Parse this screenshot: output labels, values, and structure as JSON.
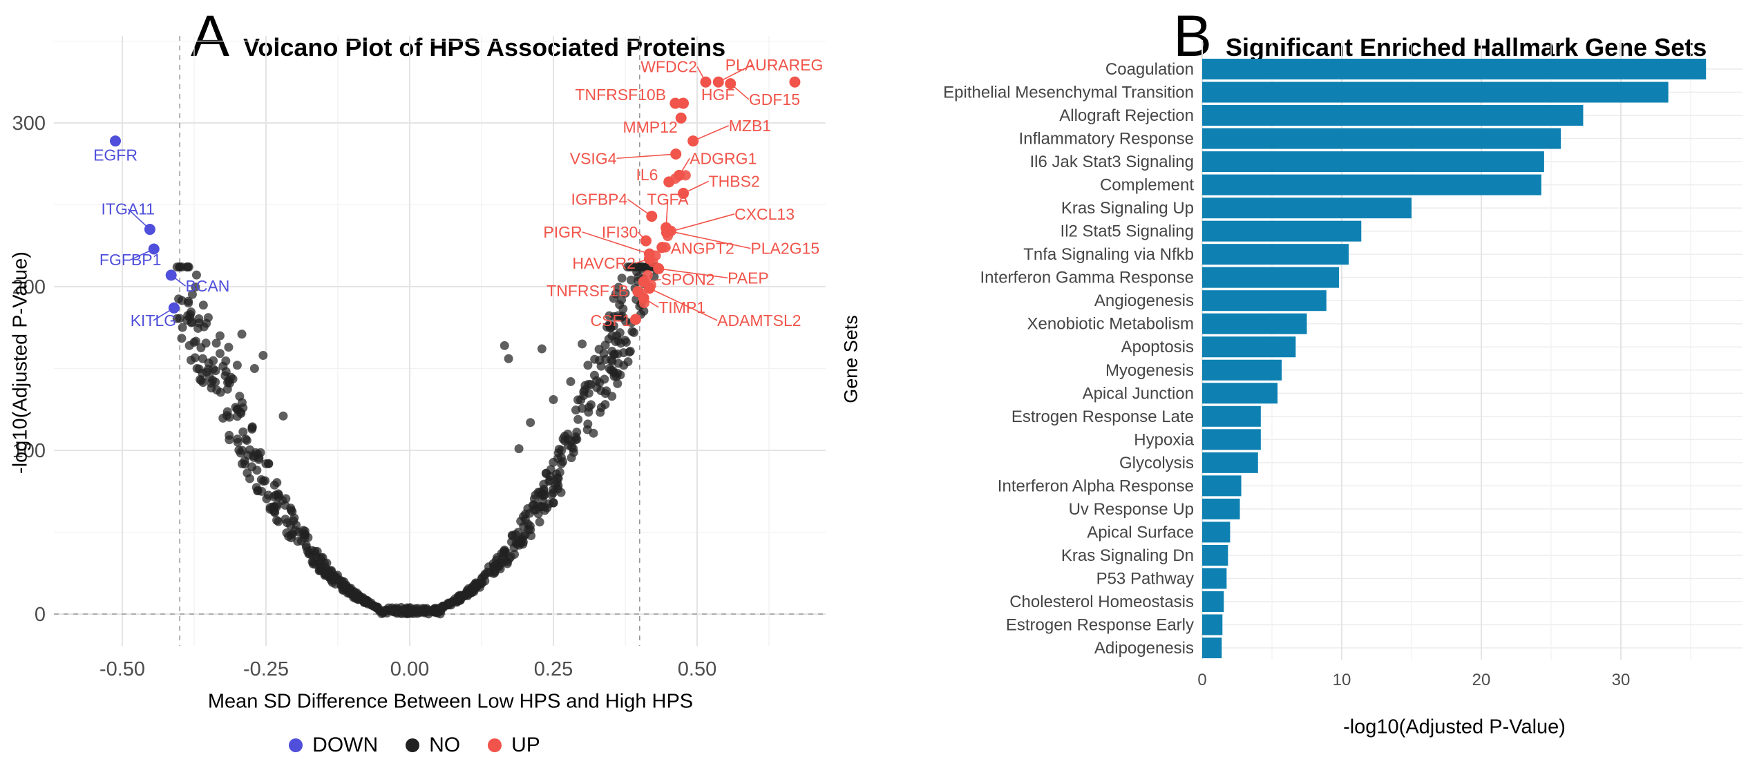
{
  "figure": {
    "background": "#ffffff"
  },
  "chart_data": [
    {
      "type": "scatter",
      "subtype": "volcano",
      "tag": "A",
      "title": "Volcano Plot of HPS Associated Proteins",
      "xlabel": "Mean SD Difference Between Low HPS and High HPS",
      "ylabel": "-log10(Adjusted P-Value)",
      "xlim": [
        -0.62,
        0.72
      ],
      "ylim": [
        -20,
        353
      ],
      "x_ticks": {
        "values": [
          -0.5,
          -0.25,
          0,
          0.25,
          0.5
        ],
        "labels": [
          "-0.50",
          "-0.25",
          "0.00",
          "0.25",
          "0.50"
        ]
      },
      "y_ticks": {
        "values": [
          0,
          100,
          200,
          300
        ],
        "labels": [
          "0",
          "100",
          "200",
          "300"
        ]
      },
      "threshold_lines": {
        "vertical_x": [
          -0.4,
          0.4
        ],
        "horizontal_y": 0
      },
      "colors": {
        "up": "#f1544a",
        "down": "#4f4fdb",
        "no": "#212121",
        "grid_major": "#e4e4e4",
        "grid_minor": "#f2f2f2",
        "dashed": "#9a9a9a",
        "tick_text": "#4d4d4d"
      },
      "legend": [
        {
          "label": "DOWN",
          "key": "down"
        },
        {
          "label": "NO",
          "key": "no"
        },
        {
          "label": "UP",
          "key": "up"
        }
      ],
      "up_genes": [
        {
          "g": "WFDC2",
          "x": 0.515,
          "y": 325,
          "lx": 0.5,
          "ly": 331,
          "anchor": "end",
          "leader": true
        },
        {
          "g": "PLAUR",
          "x": 0.537,
          "y": 325,
          "lx": 0.595,
          "ly": 332,
          "anchor": "middle",
          "leader": true
        },
        {
          "g": "AREG",
          "x": 0.67,
          "y": 325,
          "lx": 0.68,
          "ly": 332,
          "anchor": "middle",
          "leader": false
        },
        {
          "g": "GDF15",
          "x": 0.558,
          "y": 324,
          "lx": 0.59,
          "ly": 311,
          "anchor": "start",
          "leader": true
        },
        {
          "g": "TNFRSF10B",
          "x": 0.462,
          "y": 312,
          "lx": 0.446,
          "ly": 314,
          "anchor": "end",
          "leader": false
        },
        {
          "g": "HGF",
          "x": 0.476,
          "y": 312,
          "lx": 0.507,
          "ly": 314,
          "anchor": "start",
          "leader": false
        },
        {
          "g": "MMP12",
          "x": 0.472,
          "y": 303,
          "lx": 0.466,
          "ly": 294,
          "anchor": "end",
          "leader": false
        },
        {
          "g": "MZB1",
          "x": 0.493,
          "y": 289,
          "lx": 0.555,
          "ly": 295,
          "anchor": "start",
          "leader": true
        },
        {
          "g": "VSIG4",
          "x": 0.463,
          "y": 281,
          "lx": 0.36,
          "ly": 275,
          "anchor": "end",
          "leader": true
        },
        {
          "g": "ADGRG1",
          "x": 0.469,
          "y": 268,
          "lx": 0.487,
          "ly": 275,
          "anchor": "start",
          "leader": true
        },
        {
          "g": "IL6",
          "x": 0.451,
          "y": 264,
          "lx": 0.432,
          "ly": 265,
          "anchor": "end",
          "leader": false
        },
        {
          "g": "THBS2",
          "x": 0.476,
          "y": 257,
          "lx": 0.52,
          "ly": 261,
          "anchor": "start",
          "leader": true
        },
        {
          "g": "IGFBP4",
          "x": 0.421,
          "y": 243,
          "lx": 0.379,
          "ly": 250,
          "anchor": "end",
          "leader": true
        },
        {
          "g": "TGFA",
          "x": 0.446,
          "y": 236,
          "lx": 0.449,
          "ly": 250,
          "anchor": "middle",
          "leader": true
        },
        {
          "g": "CXCL13",
          "x": 0.447,
          "y": 233,
          "lx": 0.565,
          "ly": 241,
          "anchor": "start",
          "leader": true
        },
        {
          "g": "PLA2G15",
          "x": 0.451,
          "y": 234,
          "lx": 0.593,
          "ly": 220,
          "anchor": "start",
          "leader": true
        },
        {
          "g": "IFI30",
          "x": 0.411,
          "y": 228,
          "lx": 0.397,
          "ly": 230,
          "anchor": "end",
          "leader": true
        },
        {
          "g": "PIGR",
          "x": 0.417,
          "y": 220,
          "lx": 0.3,
          "ly": 230,
          "anchor": "end",
          "leader": true
        },
        {
          "g": "ANGPT2",
          "x": 0.439,
          "y": 224,
          "lx": 0.454,
          "ly": 220,
          "anchor": "start",
          "leader": true
        },
        {
          "g": "HAVCR2",
          "x": 0.417,
          "y": 217,
          "lx": 0.393,
          "ly": 211,
          "anchor": "end",
          "leader": true
        },
        {
          "g": "PAEP",
          "x": 0.433,
          "y": 211,
          "lx": 0.553,
          "ly": 202,
          "anchor": "start",
          "leader": true
        },
        {
          "g": "SPON2",
          "x": 0.407,
          "y": 203,
          "lx": 0.437,
          "ly": 201,
          "anchor": "start",
          "leader": true
        },
        {
          "g": "TNFRSF1B",
          "x": 0.397,
          "y": 197,
          "lx": 0.381,
          "ly": 194,
          "anchor": "end",
          "leader": false
        },
        {
          "g": "TIMP1",
          "x": 0.407,
          "y": 193,
          "lx": 0.433,
          "ly": 184,
          "anchor": "start",
          "leader": true
        },
        {
          "g": "ADAMTSL2",
          "x": 0.417,
          "y": 199,
          "lx": 0.535,
          "ly": 176,
          "anchor": "start",
          "leader": true
        },
        {
          "g": "CSF1",
          "x": 0.393,
          "y": 180,
          "lx": 0.385,
          "ly": 176,
          "anchor": "end",
          "leader": false
        }
      ],
      "down_genes": [
        {
          "g": "EGFR",
          "x": -0.512,
          "y": 289,
          "lx": -0.512,
          "ly": 277,
          "anchor": "middle",
          "leader": false
        },
        {
          "g": "ITGA11",
          "x": -0.452,
          "y": 235,
          "lx": -0.49,
          "ly": 244,
          "anchor": "middle",
          "leader": true
        },
        {
          "g": "FGFBP1",
          "x": -0.445,
          "y": 223,
          "lx": -0.486,
          "ly": 213,
          "anchor": "middle",
          "leader": true
        },
        {
          "g": "BCAN",
          "x": -0.415,
          "y": 207,
          "lx": -0.39,
          "ly": 197,
          "anchor": "start",
          "leader": true
        },
        {
          "g": "KITLG",
          "x": -0.41,
          "y": 187,
          "lx": -0.446,
          "ly": 176,
          "anchor": "middle",
          "leader": true
        }
      ],
      "extra_up_points": [
        [
          0.474,
          312
        ],
        [
          0.48,
          268
        ],
        [
          0.462,
          266
        ],
        [
          0.455,
          234
        ],
        [
          0.449,
          231
        ],
        [
          0.423,
          215
        ],
        [
          0.414,
          207
        ],
        [
          0.403,
          196
        ],
        [
          0.408,
          190
        ],
        [
          0.42,
          201
        ],
        [
          0.428,
          219
        ],
        [
          0.445,
          224
        ]
      ],
      "extra_no_points": [
        [
          -0.33,
          170
        ],
        [
          -0.315,
          163
        ],
        [
          -0.3,
          152
        ],
        [
          -0.292,
          171
        ],
        [
          -0.27,
          150
        ],
        [
          -0.255,
          158
        ],
        [
          -0.345,
          141
        ],
        [
          -0.36,
          156
        ],
        [
          -0.375,
          166
        ],
        [
          -0.22,
          121
        ],
        [
          0.165,
          164
        ],
        [
          0.172,
          156
        ],
        [
          0.23,
          162
        ],
        [
          0.3,
          165
        ],
        [
          0.31,
          152
        ],
        [
          0.33,
          155
        ],
        [
          0.25,
          131
        ],
        [
          0.28,
          142
        ],
        [
          0.36,
          170
        ],
        [
          0.37,
          182
        ],
        [
          0.375,
          196
        ],
        [
          0.385,
          204
        ],
        [
          0.39,
          172
        ],
        [
          0.395,
          209
        ],
        [
          0.4,
          188
        ],
        [
          0.382,
          160
        ],
        [
          0.35,
          149
        ],
        [
          0.34,
          128
        ],
        [
          0.21,
          117
        ],
        [
          0.19,
          101
        ],
        [
          0.355,
          176
        ],
        [
          0.365,
          189
        ],
        [
          0.392,
          199
        ],
        [
          0.398,
          206
        ],
        [
          0.386,
          178
        ],
        [
          -0.38,
          178
        ],
        [
          -0.385,
          190
        ],
        [
          -0.37,
          150
        ]
      ],
      "background_cloud": {
        "n": 680,
        "seed": 987654321,
        "a": 1300,
        "xmin": -0.405,
        "xmax": 0.43,
        "flat": 0.055,
        "ymax": 212,
        "opacity": 0.72
      }
    },
    {
      "type": "bar",
      "orientation": "horizontal",
      "tag": "B",
      "title": "Significant Enriched Hallmark Gene Sets",
      "xlabel": "-log10(Adjusted P-Value)",
      "ylabel": "Gene Sets",
      "categories": [
        "Coagulation",
        "Epithelial Mesenchymal Transition",
        "Allograft Rejection",
        "Inflammatory Response",
        "Il6 Jak Stat3 Signaling",
        "Complement",
        "Kras Signaling Up",
        "Il2 Stat5 Signaling",
        "Tnfa Signaling via Nfkb",
        "Interferon Gamma Response",
        "Angiogenesis",
        "Xenobiotic Metabolism",
        "Apoptosis",
        "Myogenesis",
        "Apical Junction",
        "Estrogen Response Late",
        "Hypoxia",
        "Glycolysis",
        "Interferon Alpha Response",
        "Uv Response Up",
        "Apical Surface",
        "Kras Signaling Dn",
        "P53 Pathway",
        "Cholesterol Homeostasis",
        "Estrogen Response Early",
        "Adipogenesis"
      ],
      "values": [
        36.1,
        33.4,
        27.3,
        25.7,
        24.5,
        24.3,
        15.0,
        11.4,
        10.5,
        9.8,
        8.9,
        7.5,
        6.7,
        5.7,
        5.4,
        4.2,
        4.2,
        4.0,
        2.8,
        2.7,
        2.0,
        1.85,
        1.75,
        1.55,
        1.45,
        1.4
      ],
      "x_ticks": {
        "values": [
          0,
          10,
          20,
          30
        ],
        "labels": [
          "0",
          "10",
          "20",
          "30"
        ]
      },
      "xlim": [
        0,
        38.5
      ],
      "bar_color": "#0e81b2",
      "colors": {
        "grid_major": "#e4e4e4",
        "grid_minor": "#f2f2f2",
        "row_grid": "#ececec",
        "tick_text": "#4d4d4d",
        "category_text": "#454545"
      }
    }
  ]
}
